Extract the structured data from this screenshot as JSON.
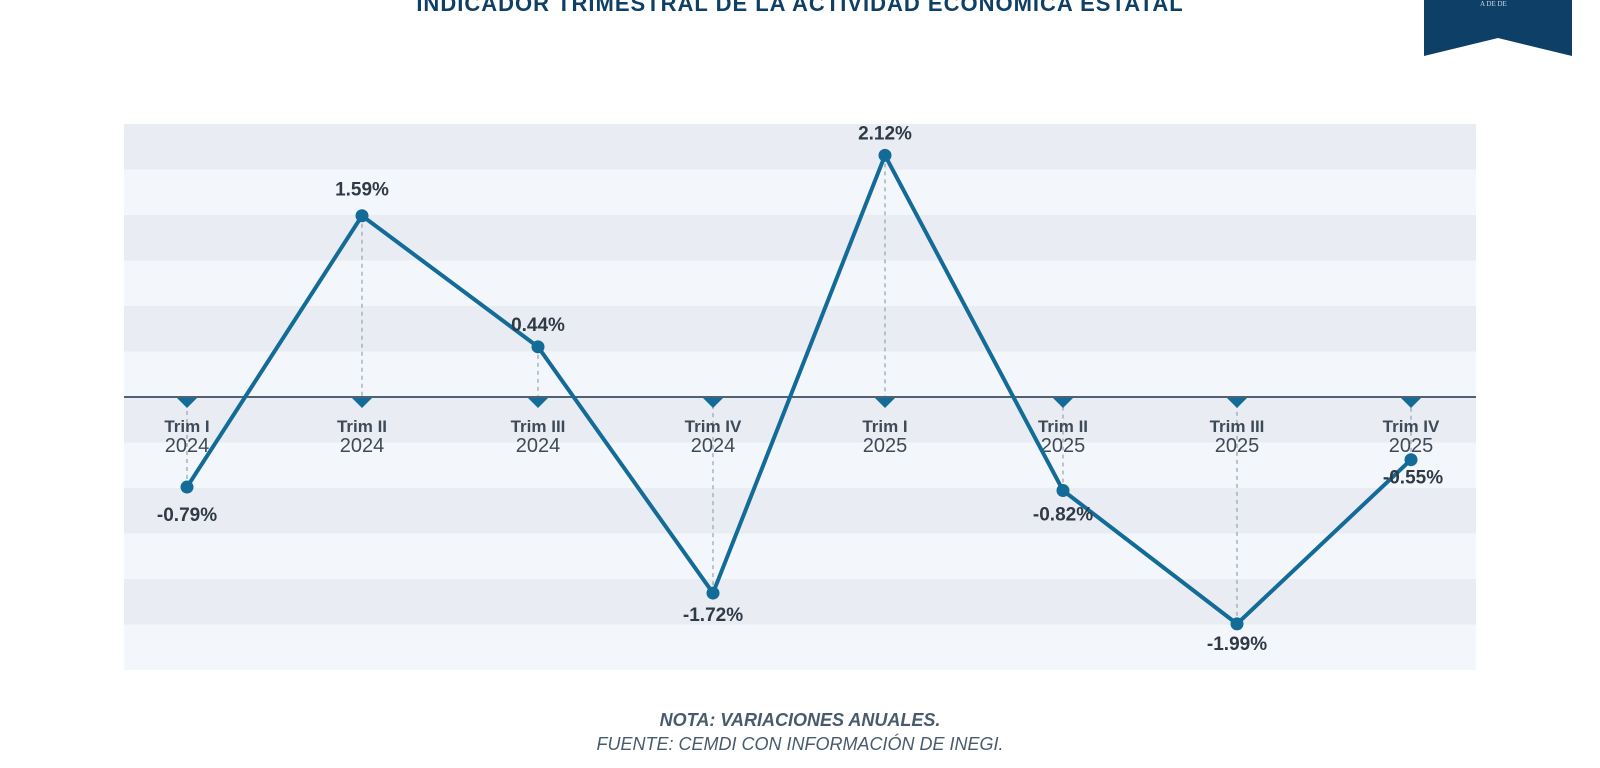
{
  "header": {
    "title": "INDICADOR TRIMESTRAL DE LA ACTIVIDAD ECONÓMICA ESTATAL",
    "badge_text": "A DE DE"
  },
  "footer": {
    "note": "NOTA: VARIACIONES ANUALES.",
    "source": "FUENTE: CEMDI CON INFORMACIÓN DE INEGI."
  },
  "colors": {
    "line": "#136b98",
    "band_dark": "#e9edf3",
    "band_light": "#f3f7fb",
    "axis": "#4f6273",
    "title": "#0e3f66",
    "badge": "#0e3f66"
  },
  "chart_data": {
    "type": "line",
    "categories": [
      [
        "Trim I",
        "2024"
      ],
      [
        "Trim II",
        "2024"
      ],
      [
        "Trim III",
        "2024"
      ],
      [
        "Trim IV",
        "2024"
      ],
      [
        "Trim I",
        "2025"
      ],
      [
        "Trim II",
        "2025"
      ],
      [
        "Trim III",
        "2025"
      ],
      [
        "Trim IV",
        "2025"
      ]
    ],
    "values": [
      -0.79,
      1.59,
      0.44,
      -1.72,
      2.12,
      -0.82,
      -1.99,
      -0.55
    ],
    "labels": [
      "-0.79%",
      "1.59%",
      "0.44%",
      "-1.72%",
      "2.12%",
      "-0.82%",
      "-1.99%",
      "-0.55%"
    ],
    "ylim": [
      -2.4,
      2.4
    ],
    "grid": true,
    "legend": "none"
  }
}
